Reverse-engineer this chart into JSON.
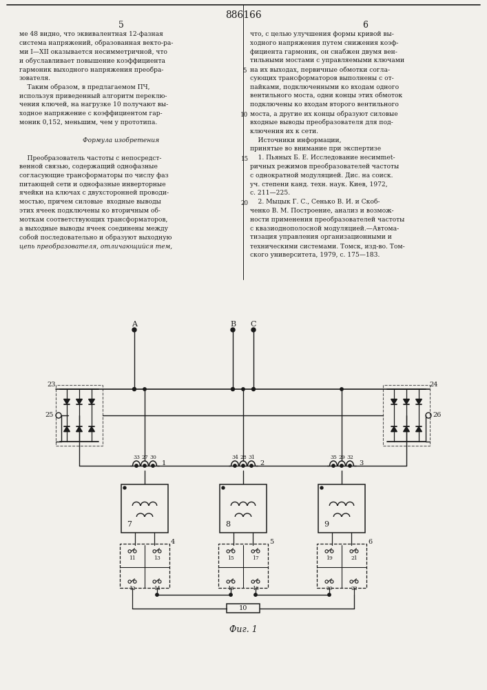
{
  "title": "886166",
  "bg": "#f2f0eb",
  "col1_text": [
    "ме 48 видно, что эквивалентная 12-фазная",
    "система напряжений, образованная векто­ра-",
    "ми I—XII оказывается несимметричной, что",
    "и обуславливает повышение коэффициента",
    "гармоник выходного напряжения преобра-",
    "зователя.",
    "    Таким образом, в предлагаемом ПЧ,",
    "используя приведенный алгоритм переклю-",
    "чения ключей, на нагрузке 10 получают вы-",
    "ходное напряжение с коэффициентом гар-",
    "моник 0,152, меньшим, чем у прототипа.",
    "",
    "Формула изобретения",
    "",
    "    Преобразователь частоты с непосредст-",
    "венной связью, содержащий однофазные",
    "согласующие трансформаторы по числу фаз",
    "питающей сети и однофазные инверторные",
    "ячейки на ключах с двухсторонней проводи-",
    "мостью, причем силовые  входные выводы",
    "этих ячеек подключены ко вторичным об-",
    "моткам соответствующих трансформаторов,",
    "а выходные выводы ячеек соединены между",
    "собой последовательно и образуют выходную",
    "цепь преобразователя, отличающийся тем,"
  ],
  "col2_text": [
    "что, с целью улучшения формы кривой вы-",
    "ходного напряжения путем снижения коэф-",
    "фициента гармоник, он снабжен двумя вен-",
    "тильными мостами с управляемыми ключами",
    "на их выходах, первичные обмотки согла-",
    "сующих трансформаторов выполнены с от-",
    "пайками, подключенными ко входам одного",
    "вентильного моста, одни концы этих обмоток",
    "подключены ко входам второго вентильного",
    "моста, а другие их концы образуют силовые",
    "входные выводы преобразователя для под-",
    "ключения их к сети.",
    "    Источники информации,",
    "принятые во внимание при экспертизе",
    "    1. Пьяных Б. Е. Исследование несимmet-",
    "ричных режимов преобразователей частоты",
    "с однократной модуляцией. Дис. на соиск.",
    "уч. степени канд. техн. наук. Киев, 1972,",
    "с. 211—225.",
    "    2. Мыцык Г. С., Сенько В. И. и Скоб-",
    "ченко В. М. Построение, анализ и возмож-",
    "ности применения преобразователей частоты",
    "с квазиоднополосной модуляцией.—Автома-",
    "тизация управления организационными и",
    "техническими системами. Томск, изд-во. Том-",
    "ского университета, 1979, с. 175—183."
  ],
  "italic_words": [
    "отличающийся"
  ],
  "italic_lines": [
    12
  ],
  "line_nums": [
    5,
    10,
    15,
    20
  ],
  "fig_caption": "Фиг. 1"
}
